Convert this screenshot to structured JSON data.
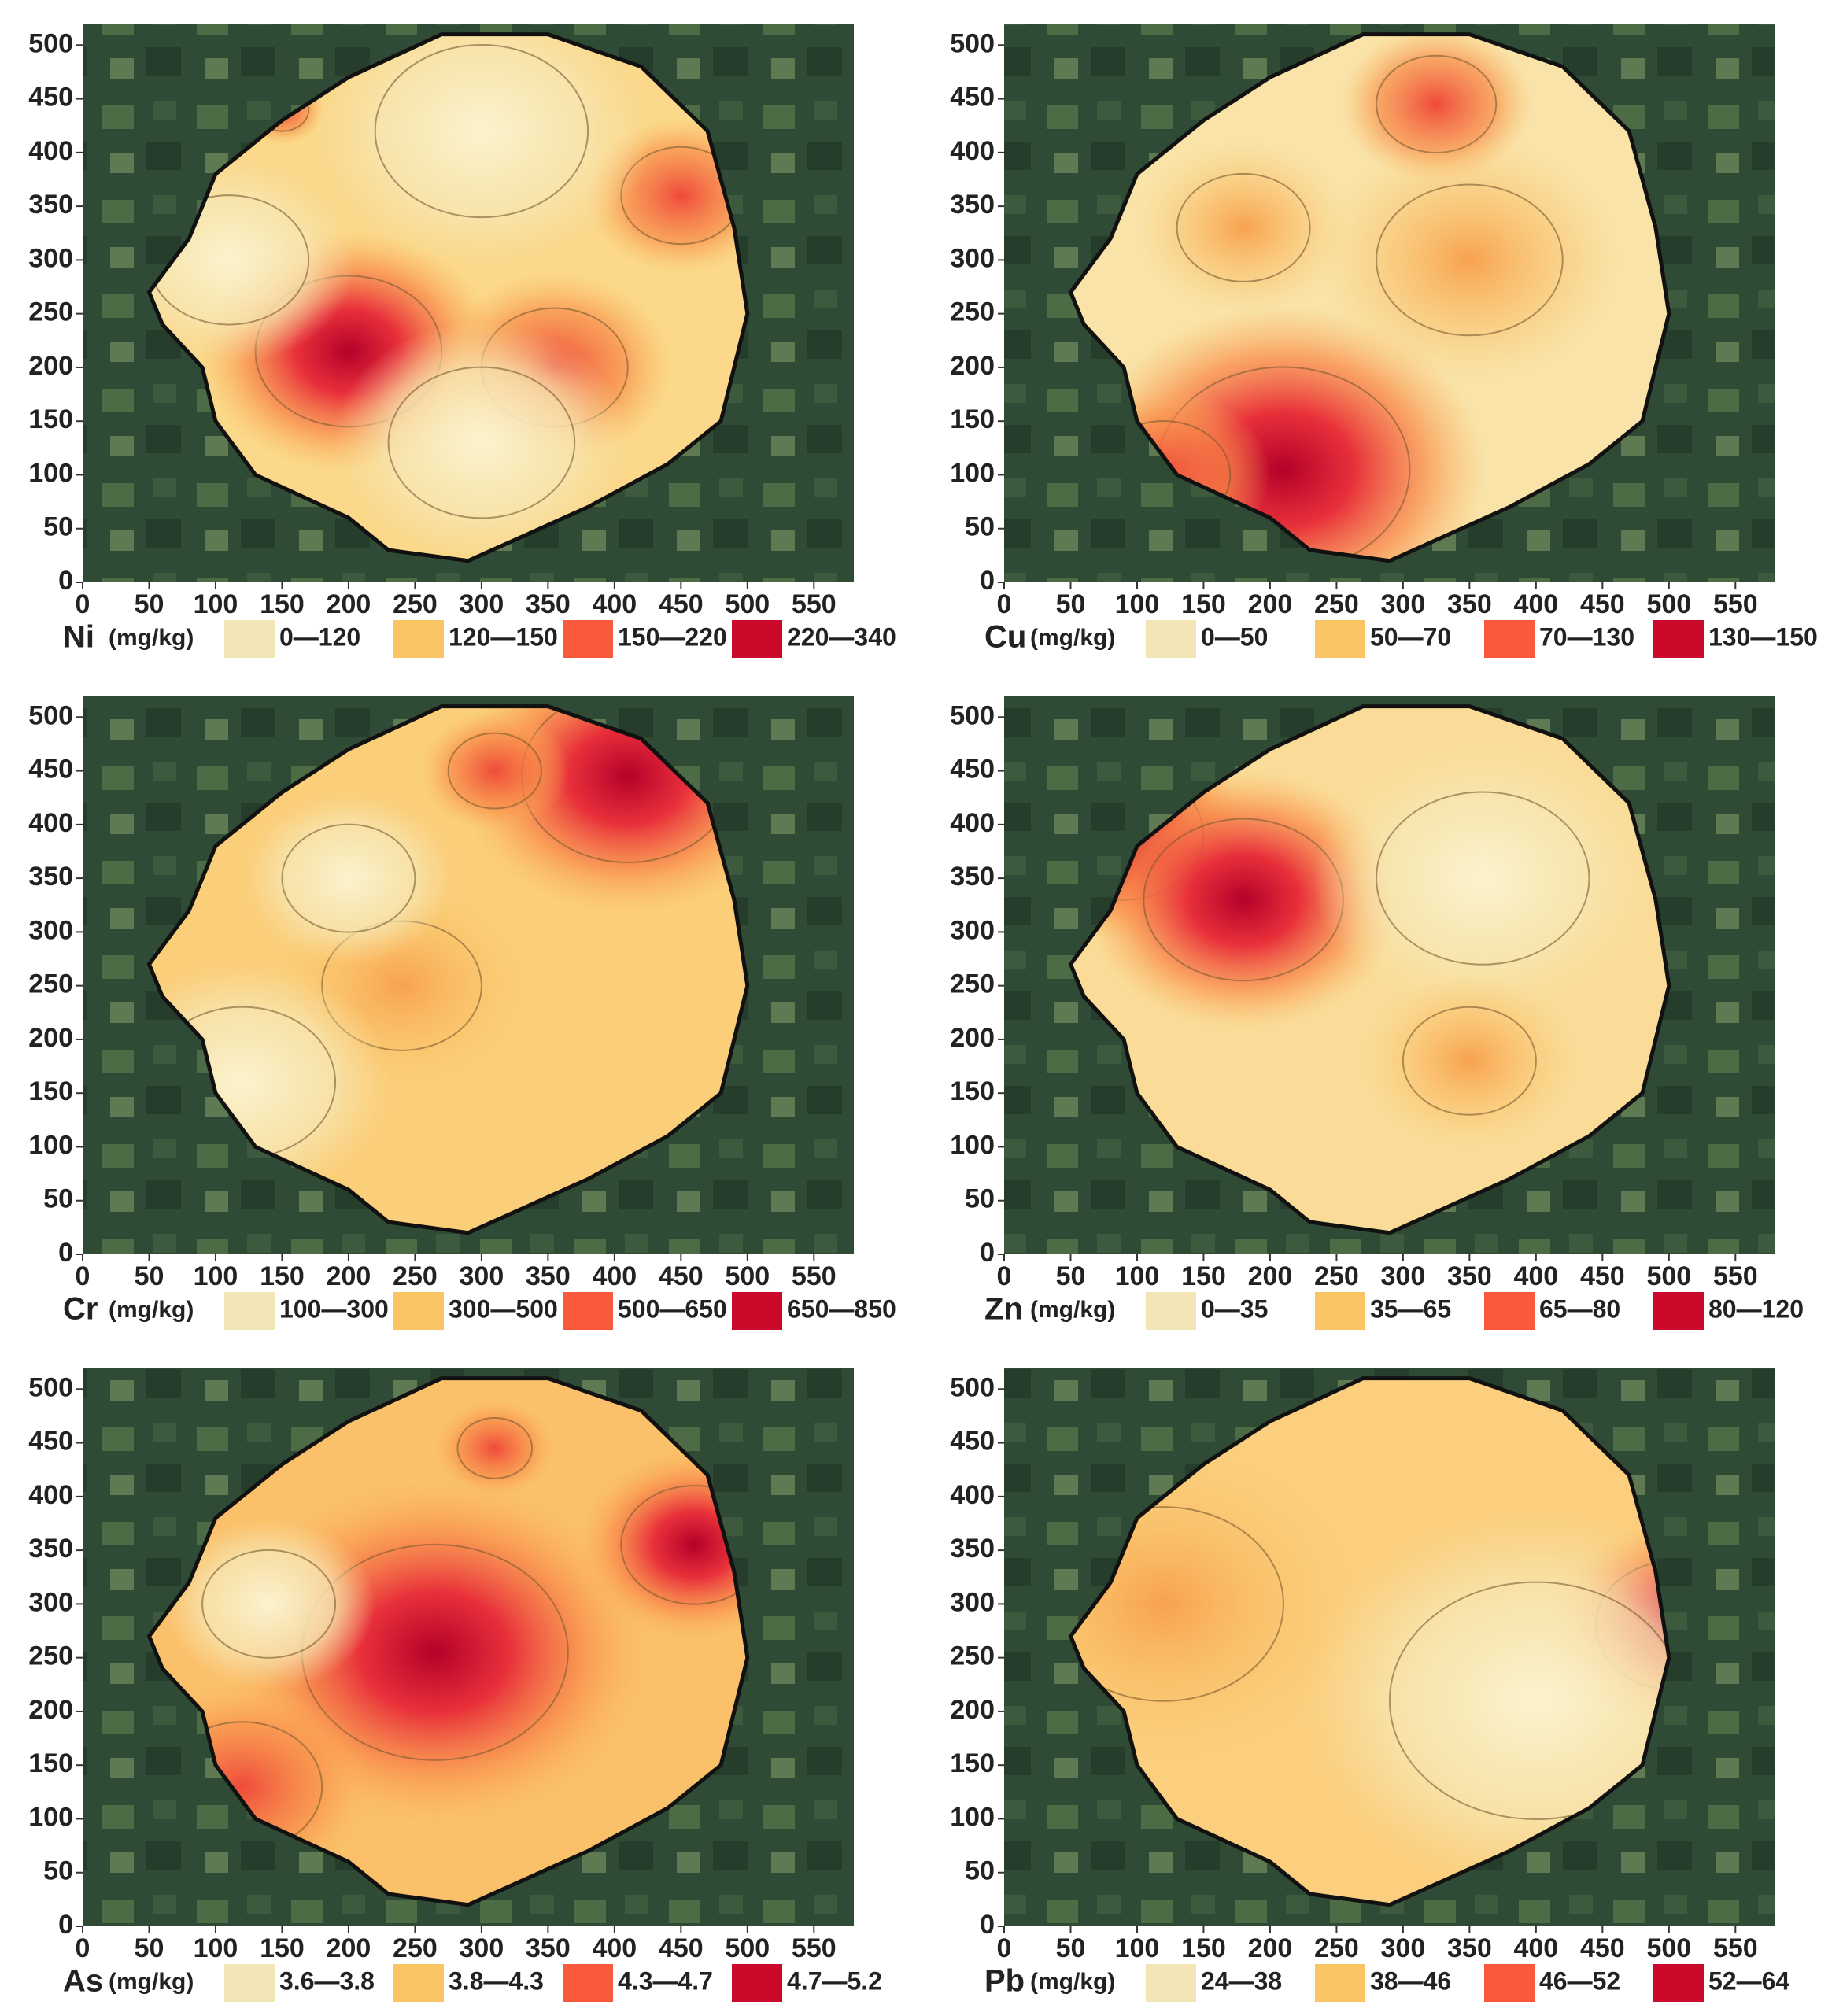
{
  "panels": [
    {
      "element": "Ni",
      "unit": "(mg/kg)",
      "xlim": [
        0,
        580
      ],
      "ylim": [
        0,
        520
      ],
      "xticks": [
        0,
        50,
        100,
        150,
        200,
        250,
        300,
        350,
        400,
        450,
        500,
        550
      ],
      "yticks": [
        0,
        50,
        100,
        150,
        200,
        250,
        300,
        350,
        400,
        450,
        500
      ],
      "legend": [
        {
          "label": "0—120",
          "color": "#f3e6b6"
        },
        {
          "label": "120—150",
          "color": "#fbc463"
        },
        {
          "label": "150—220",
          "color": "#f85a3b"
        },
        {
          "label": "220—340",
          "color": "#cb0a2b"
        }
      ]
    },
    {
      "element": "Cu",
      "unit": "(mg/kg)",
      "xlim": [
        0,
        580
      ],
      "ylim": [
        0,
        520
      ],
      "xticks": [
        0,
        50,
        100,
        150,
        200,
        250,
        300,
        350,
        400,
        450,
        500,
        550
      ],
      "yticks": [
        0,
        50,
        100,
        150,
        200,
        250,
        300,
        350,
        400,
        450,
        500
      ],
      "legend": [
        {
          "label": "0—50",
          "color": "#f3e6b6"
        },
        {
          "label": "50—70",
          "color": "#fbc463"
        },
        {
          "label": "70—130",
          "color": "#f85a3b"
        },
        {
          "label": "130—150",
          "color": "#cb0a2b"
        }
      ]
    },
    {
      "element": "Cr",
      "unit": "(mg/kg)",
      "xlim": [
        0,
        580
      ],
      "ylim": [
        0,
        520
      ],
      "xticks": [
        0,
        50,
        100,
        150,
        200,
        250,
        300,
        350,
        400,
        450,
        500,
        550
      ],
      "yticks": [
        0,
        50,
        100,
        150,
        200,
        250,
        300,
        350,
        400,
        450,
        500
      ],
      "legend": [
        {
          "label": "100—300",
          "color": "#f3e6b6"
        },
        {
          "label": "300—500",
          "color": "#fbc463"
        },
        {
          "label": "500—650",
          "color": "#f85a3b"
        },
        {
          "label": "650—850",
          "color": "#cb0a2b"
        }
      ]
    },
    {
      "element": "Zn",
      "unit": "(mg/kg)",
      "xlim": [
        0,
        580
      ],
      "ylim": [
        0,
        520
      ],
      "xticks": [
        0,
        50,
        100,
        150,
        200,
        250,
        300,
        350,
        400,
        450,
        500,
        550
      ],
      "yticks": [
        0,
        50,
        100,
        150,
        200,
        250,
        300,
        350,
        400,
        450,
        500
      ],
      "legend": [
        {
          "label": "0—35",
          "color": "#f3e6b6"
        },
        {
          "label": "35—65",
          "color": "#fbc463"
        },
        {
          "label": "65—80",
          "color": "#f85a3b"
        },
        {
          "label": "80—120",
          "color": "#cb0a2b"
        }
      ]
    },
    {
      "element": "As",
      "unit": "(mg/kg)",
      "xlim": [
        0,
        580
      ],
      "ylim": [
        0,
        520
      ],
      "xticks": [
        0,
        50,
        100,
        150,
        200,
        250,
        300,
        350,
        400,
        450,
        500,
        550
      ],
      "yticks": [
        0,
        50,
        100,
        150,
        200,
        250,
        300,
        350,
        400,
        450,
        500
      ],
      "legend": [
        {
          "label": "3.6—3.8",
          "color": "#f3e6b6"
        },
        {
          "label": "3.8—4.3",
          "color": "#fbc463"
        },
        {
          "label": "4.3—4.7",
          "color": "#f85a3b"
        },
        {
          "label": "4.7—5.2",
          "color": "#cb0a2b"
        }
      ]
    },
    {
      "element": "Pb",
      "unit": "(mg/kg)",
      "xlim": [
        0,
        580
      ],
      "ylim": [
        0,
        520
      ],
      "xticks": [
        0,
        50,
        100,
        150,
        200,
        250,
        300,
        350,
        400,
        450,
        500,
        550
      ],
      "yticks": [
        0,
        50,
        100,
        150,
        200,
        250,
        300,
        350,
        400,
        450,
        500
      ],
      "legend": [
        {
          "label": "24—38",
          "color": "#f3e6b6"
        },
        {
          "label": "38—46",
          "color": "#fbc463"
        },
        {
          "label": "46—52",
          "color": "#f85a3b"
        },
        {
          "label": "52—64",
          "color": "#cb0a2b"
        }
      ]
    }
  ]
}
